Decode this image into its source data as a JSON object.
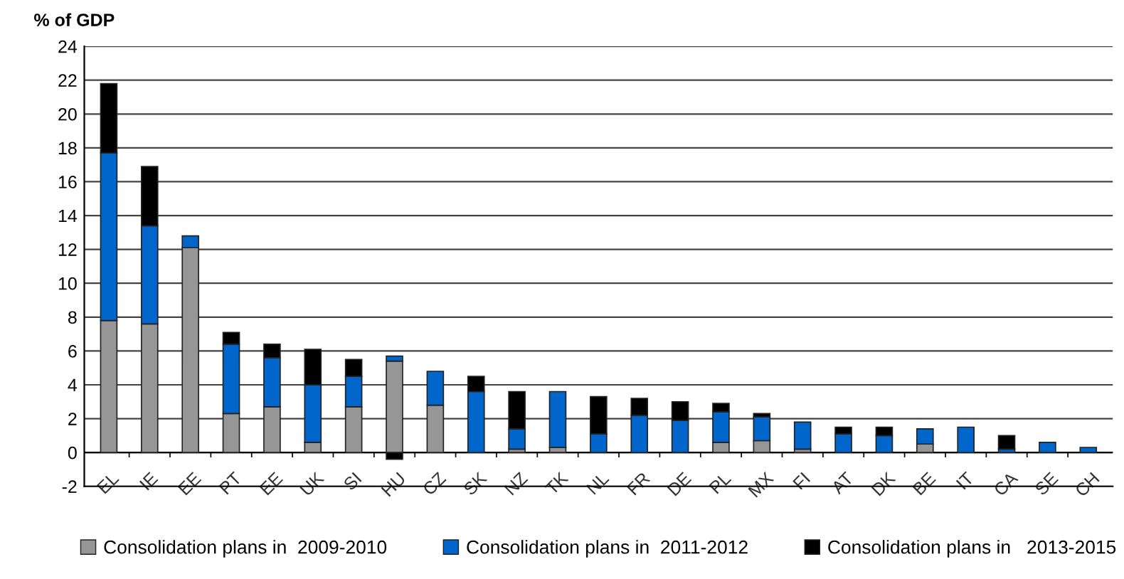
{
  "chart_data": {
    "type": "bar",
    "stacked": true,
    "ylabel": "% of GDP",
    "categories": [
      "EL",
      "IE",
      "EE",
      "PT",
      "EE",
      "UK",
      "SI",
      "HU",
      "CZ",
      "SK",
      "NZ",
      "TK",
      "NL",
      "FR",
      "DE",
      "PL",
      "MX",
      "FI",
      "AT",
      "DK",
      "BE",
      "IT",
      "CA",
      "SE",
      "CH"
    ],
    "series": [
      {
        "name": "Consolidation plans in  2009-2010",
        "color": "#969696",
        "values": [
          7.8,
          7.6,
          12.1,
          2.3,
          2.7,
          0.6,
          2.7,
          5.4,
          2.8,
          0,
          0.2,
          0.3,
          0,
          0,
          0,
          0.6,
          0.7,
          0.2,
          0,
          0,
          0.5,
          0,
          0,
          0,
          0
        ]
      },
      {
        "name": "Consolidation plans in  2011-2012",
        "color": "#0066cc",
        "values": [
          9.9,
          5.8,
          0.7,
          4.1,
          2.9,
          3.4,
          1.8,
          0.3,
          2.0,
          3.6,
          1.2,
          3.3,
          1.1,
          2.2,
          1.9,
          1.8,
          1.4,
          1.6,
          1.1,
          1.0,
          0.9,
          1.5,
          0.2,
          0.6,
          0.3
        ]
      },
      {
        "name": "Consolidation plans in   2013-2015",
        "color": "#000000",
        "values": [
          4.1,
          3.5,
          0,
          0.7,
          0.8,
          2.1,
          1.0,
          -0.4,
          0,
          0.9,
          2.2,
          0,
          2.2,
          1.0,
          1.1,
          0.5,
          0.2,
          0,
          0.4,
          0.5,
          0,
          0,
          0.8,
          0,
          0
        ]
      }
    ],
    "ylim": [
      -2,
      24
    ],
    "yticks": [
      -2,
      0,
      2,
      4,
      6,
      8,
      10,
      12,
      14,
      16,
      18,
      20,
      22,
      24
    ],
    "grid": "y",
    "legend": "bottom"
  }
}
